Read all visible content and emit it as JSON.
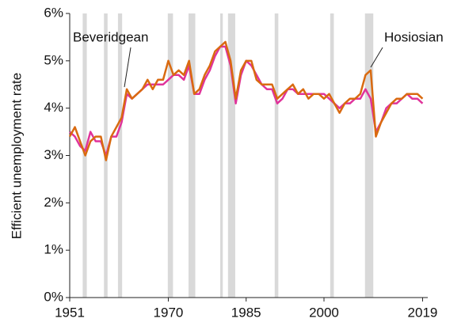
{
  "chart_data": {
    "type": "line",
    "y_label": "Efficient unemployment rate",
    "x": [
      1951,
      1952,
      1953,
      1954,
      1955,
      1956,
      1957,
      1958,
      1959,
      1960,
      1961,
      1962,
      1963,
      1964,
      1965,
      1966,
      1967,
      1968,
      1969,
      1970,
      1971,
      1972,
      1973,
      1974,
      1975,
      1976,
      1977,
      1978,
      1979,
      1980,
      1981,
      1982,
      1983,
      1984,
      1985,
      1986,
      1987,
      1988,
      1989,
      1990,
      1991,
      1992,
      1993,
      1994,
      1995,
      1996,
      1997,
      1998,
      1999,
      2000,
      2001,
      2002,
      2003,
      2004,
      2005,
      2006,
      2007,
      2008,
      2009,
      2010,
      2011,
      2012,
      2013,
      2014,
      2015,
      2016,
      2017,
      2018,
      2019
    ],
    "series": [
      {
        "name": "Beveridgean",
        "color": "#e0339a",
        "values": [
          3.5,
          3.4,
          3.2,
          3.1,
          3.5,
          3.3,
          3.3,
          3.0,
          3.4,
          3.4,
          3.7,
          4.3,
          4.2,
          4.3,
          4.4,
          4.5,
          4.5,
          4.5,
          4.5,
          4.6,
          4.7,
          4.7,
          4.6,
          4.9,
          4.3,
          4.3,
          4.6,
          4.8,
          5.1,
          5.3,
          5.3,
          4.9,
          4.1,
          4.7,
          5.0,
          4.9,
          4.7,
          4.5,
          4.4,
          4.4,
          4.1,
          4.2,
          4.4,
          4.4,
          4.3,
          4.3,
          4.3,
          4.3,
          4.3,
          4.3,
          4.2,
          4.1,
          4.0,
          4.1,
          4.1,
          4.2,
          4.2,
          4.4,
          4.2,
          3.5,
          3.7,
          4.0,
          4.1,
          4.1,
          4.2,
          4.3,
          4.2,
          4.2,
          4.1
        ]
      },
      {
        "name": "Hosiosian",
        "color": "#d96a10",
        "values": [
          3.4,
          3.6,
          3.3,
          3.0,
          3.3,
          3.4,
          3.4,
          2.9,
          3.4,
          3.6,
          3.8,
          4.4,
          4.2,
          4.3,
          4.4,
          4.6,
          4.4,
          4.6,
          4.6,
          5.0,
          4.7,
          4.8,
          4.7,
          5.0,
          4.3,
          4.4,
          4.7,
          4.9,
          5.2,
          5.3,
          5.4,
          5.0,
          4.2,
          4.8,
          5.0,
          5.0,
          4.6,
          4.5,
          4.5,
          4.5,
          4.2,
          4.3,
          4.4,
          4.5,
          4.3,
          4.4,
          4.2,
          4.3,
          4.3,
          4.2,
          4.3,
          4.1,
          3.9,
          4.1,
          4.2,
          4.2,
          4.3,
          4.7,
          4.8,
          3.4,
          3.7,
          3.9,
          4.1,
          4.2,
          4.2,
          4.3,
          4.3,
          4.3,
          4.2
        ]
      }
    ],
    "recessions": [
      [
        1953.5,
        1954.3
      ],
      [
        1957.6,
        1958.3
      ],
      [
        1960.3,
        1961.1
      ],
      [
        1969.9,
        1970.9
      ],
      [
        1973.9,
        1975.2
      ],
      [
        1980.0,
        1980.5
      ],
      [
        1981.5,
        1982.9
      ],
      [
        1990.5,
        1991.2
      ],
      [
        2001.2,
        2001.9
      ],
      [
        2007.9,
        2009.5
      ]
    ],
    "recession_color": "#d9d9d9",
    "xlim": [
      1951,
      2020
    ],
    "xticks": [
      1951,
      1970,
      1985,
      2000,
      2019
    ],
    "ylim": [
      0,
      6
    ],
    "yticks": [
      {
        "value": 0,
        "label": "0%"
      },
      {
        "value": 1,
        "label": "1%"
      },
      {
        "value": 2,
        "label": "2%"
      },
      {
        "value": 3,
        "label": "3%"
      },
      {
        "value": 4,
        "label": "4%"
      },
      {
        "value": 5,
        "label": "5%"
      },
      {
        "value": 6,
        "label": "6%"
      }
    ]
  }
}
